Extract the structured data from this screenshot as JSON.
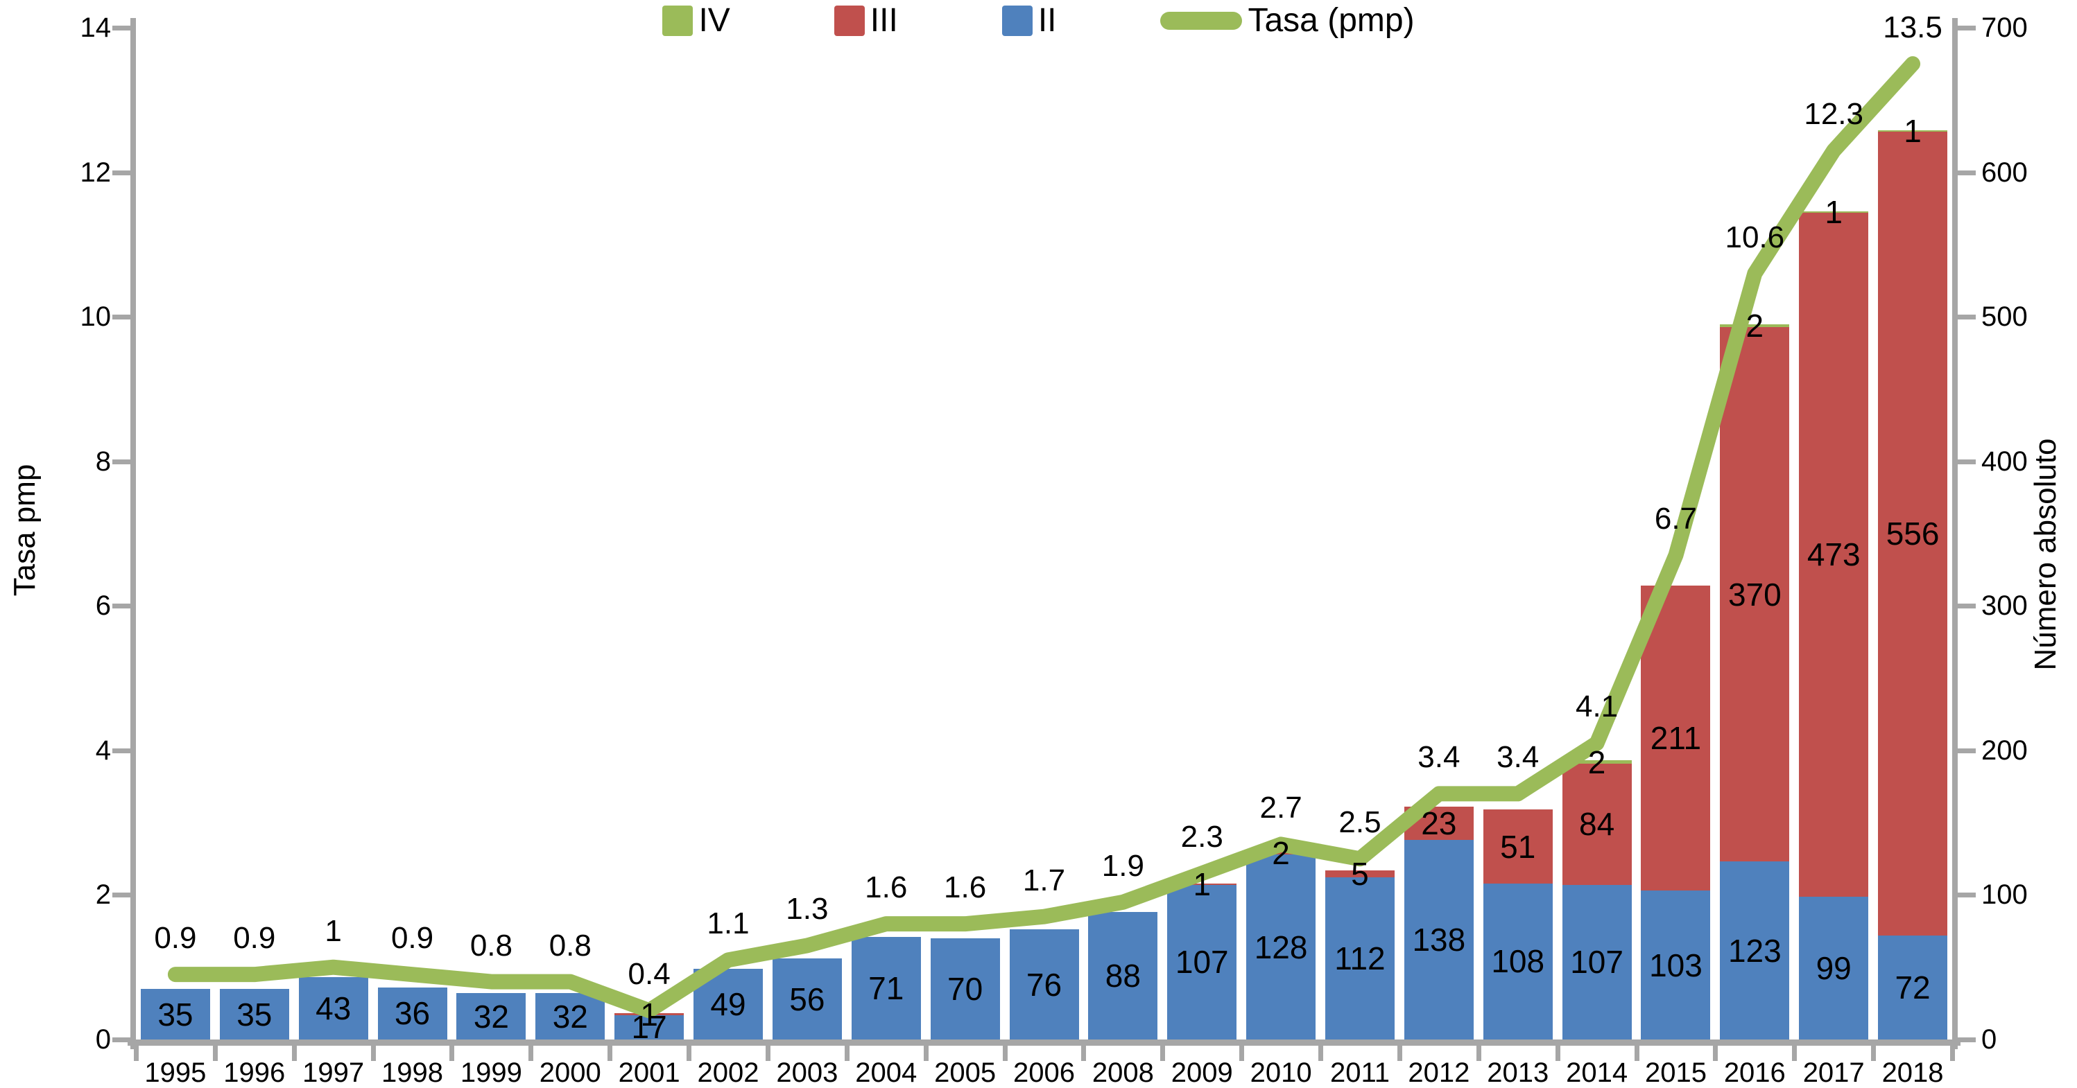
{
  "chart_data": {
    "type": "bar",
    "subtype": "stacked-columns-with-line-overlay",
    "title": "",
    "grid": false,
    "legend_position": "top-center",
    "categories": [
      "1995",
      "1996",
      "1997",
      "1998",
      "1999",
      "2000",
      "2001",
      "2002",
      "2003",
      "2004",
      "2005",
      "2006",
      "2008",
      "2009",
      "2010",
      "2011",
      "2012",
      "2013",
      "2014",
      "2015",
      "2016",
      "2017",
      "2018"
    ],
    "series": [
      {
        "name": "II",
        "color": "#4f81bd",
        "values": [
          35,
          35,
          43,
          36,
          32,
          32,
          17,
          49,
          56,
          71,
          70,
          76,
          88,
          107,
          128,
          112,
          138,
          108,
          107,
          103,
          123,
          99,
          72
        ]
      },
      {
        "name": "III",
        "color": "#c0504d",
        "values": [
          0,
          0,
          0,
          0,
          0,
          0,
          1,
          0,
          0,
          0,
          0,
          0,
          0,
          1,
          2,
          5,
          23,
          51,
          84,
          211,
          370,
          473,
          556
        ]
      },
      {
        "name": "IV",
        "color": "#9bbb59",
        "values": [
          0,
          0,
          0,
          0,
          0,
          0,
          0,
          0,
          0,
          0,
          0,
          0,
          0,
          0,
          0,
          0,
          0,
          0,
          2,
          0,
          2,
          1,
          1
        ]
      }
    ],
    "line_series": {
      "name": "Tasa (pmp)",
      "color": "#9bbb59",
      "values": [
        0.9,
        0.9,
        1,
        0.9,
        0.8,
        0.8,
        0.4,
        1.1,
        1.3,
        1.6,
        1.6,
        1.7,
        1.9,
        2.3,
        2.7,
        2.5,
        3.4,
        3.4,
        4.1,
        6.7,
        10.6,
        12.3,
        13.5
      ]
    },
    "left_axis": {
      "label": "Tasa pmp",
      "min": 0,
      "max": 14,
      "ticks": [
        "0",
        "2",
        "4",
        "6",
        "8",
        "10",
        "12",
        "14"
      ]
    },
    "right_axis": {
      "label": "Número absoluto",
      "min": 0,
      "max": 700,
      "ticks": [
        "0",
        "100",
        "200",
        "300",
        "400",
        "500",
        "600",
        "700"
      ]
    },
    "legend": [
      {
        "label": "IV",
        "color": "#9bbb59",
        "shape": "square"
      },
      {
        "label": "III",
        "color": "#c0504d",
        "shape": "square"
      },
      {
        "label": "II",
        "color": "#4f81bd",
        "shape": "square"
      },
      {
        "label": "Tasa (pmp)",
        "color": "#9bbb59",
        "shape": "line"
      }
    ],
    "axis_color": "#a6a6a6"
  }
}
